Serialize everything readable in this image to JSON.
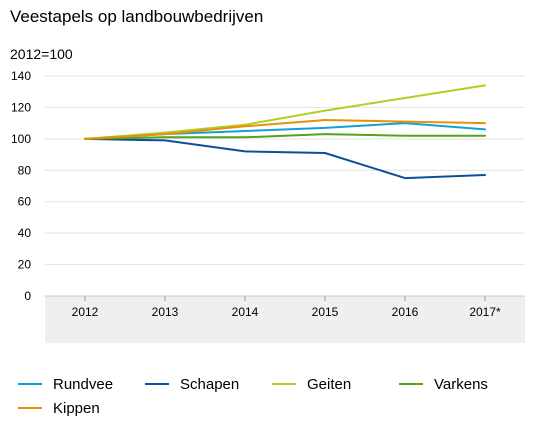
{
  "chart_data": {
    "type": "line",
    "title": "Veestapels op landbouwbedrijven",
    "subtitle": "2012=100",
    "xlabel": "",
    "ylabel": "",
    "categories": [
      "2012",
      "2013",
      "2014",
      "2015",
      "2016",
      "2017*"
    ],
    "ylim": [
      0,
      140
    ],
    "yticks": [
      0,
      20,
      40,
      60,
      80,
      100,
      120,
      140
    ],
    "grid": true,
    "legend_position": "bottom",
    "series": [
      {
        "name": "Rundvee",
        "color": "#139fd6",
        "values": [
          100,
          103,
          105,
          107,
          110,
          106
        ]
      },
      {
        "name": "Schapen",
        "color": "#0e4f9c",
        "values": [
          100,
          99,
          92,
          91,
          75,
          77
        ]
      },
      {
        "name": "Geiten",
        "color": "#b2cf1f",
        "values": [
          100,
          104,
          109,
          118,
          126,
          134
        ]
      },
      {
        "name": "Varkens",
        "color": "#53a31d",
        "values": [
          100,
          101,
          101,
          103,
          102,
          102
        ]
      },
      {
        "name": "Kippen",
        "color": "#e9900b",
        "values": [
          100,
          103,
          108,
          112,
          111,
          110
        ]
      }
    ]
  },
  "colors": {
    "grid": "#e2e2e2",
    "x_axis_band": "#efefef",
    "axis_line": "#c8c8c8"
  }
}
